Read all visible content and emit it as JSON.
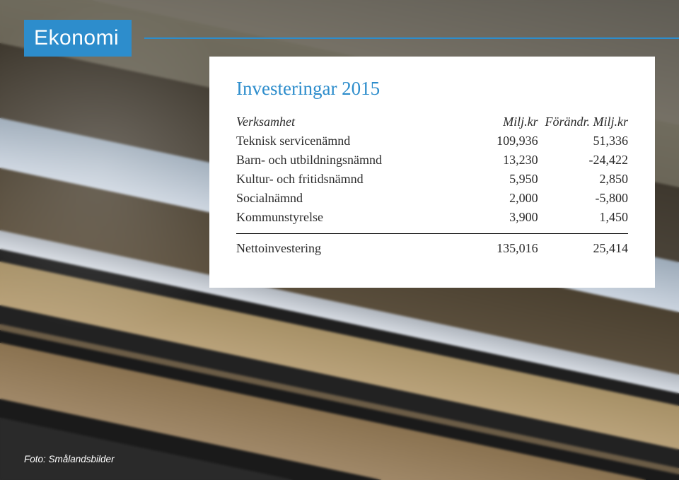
{
  "colors": {
    "header_blue": "#2d8dcc",
    "header_divider": "#2d8dcc",
    "card_bg": "#ffffff",
    "title_color": "#2d8dcc",
    "text_color": "#2b2b2b",
    "credit_color": "#ffffff",
    "rule_color": "#000000"
  },
  "header": {
    "title": "Ekonomi"
  },
  "card": {
    "title": "Investeringar 2015",
    "columns": [
      "Verksamhet",
      "Milj.kr",
      "Förändr. Milj.kr"
    ],
    "rows": [
      {
        "label": "Teknisk servicenämnd",
        "v1": "109,936",
        "v2": "51,336"
      },
      {
        "label": "Barn- och utbildningsnämnd",
        "v1": "13,230",
        "v2": "-24,422"
      },
      {
        "label": "Kultur- och fritidsnämnd",
        "v1": "5,950",
        "v2": "2,850"
      },
      {
        "label": "Socialnämnd",
        "v1": "2,000",
        "v2": "-5,800"
      },
      {
        "label": "Kommunstyrelse",
        "v1": "3,900",
        "v2": "1,450"
      }
    ],
    "total": {
      "label": "Nettoinvestering",
      "v1": "135,016",
      "v2": "25,414"
    }
  },
  "credit": "Foto: Smålandsbilder"
}
